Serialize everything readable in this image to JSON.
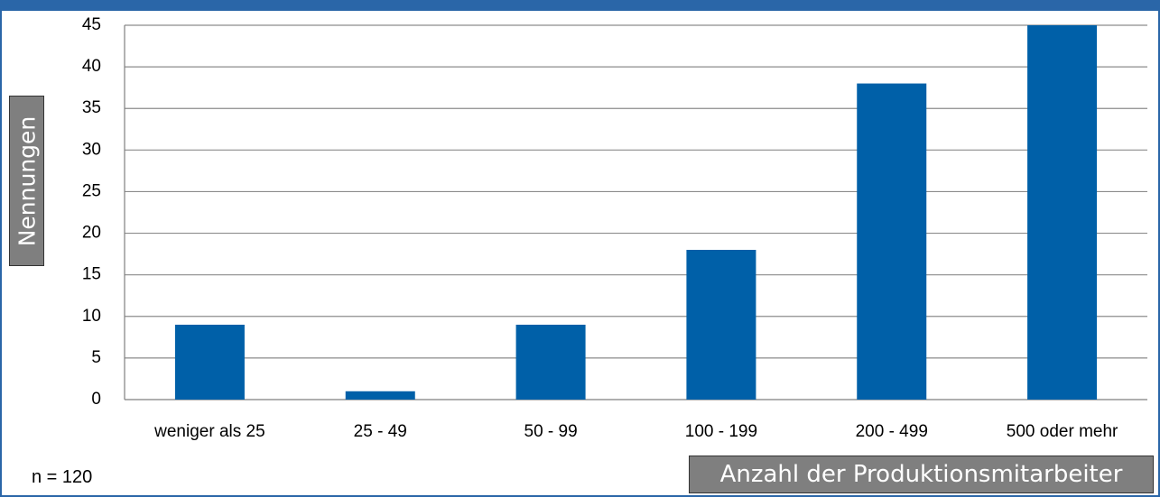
{
  "chart_data": {
    "type": "bar",
    "categories": [
      "weniger als 25",
      "25 - 49",
      "50 - 99",
      "100 - 199",
      "200 - 499",
      "500 oder mehr"
    ],
    "values": [
      9,
      1,
      9,
      18,
      38,
      45
    ],
    "xlabel": "Anzahl der Produktionsmitarbeiter",
    "ylabel": "Nennungen",
    "ylim": [
      0,
      45
    ],
    "yticks": [
      0,
      5,
      10,
      15,
      20,
      25,
      30,
      35,
      40,
      45
    ],
    "grid": true,
    "bar_color": "#0060a8",
    "note": "n = 120"
  }
}
